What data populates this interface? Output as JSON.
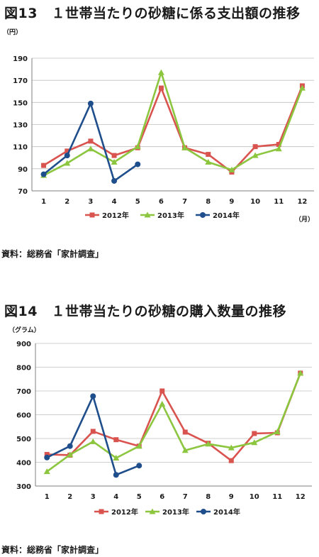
{
  "figure1": {
    "title": "図13　１世帯当たりの砂糖に係る支出額の推移",
    "source": "資料：総務省「家計調査」"
  },
  "figure2": {
    "title": "図14　１世帯当たりの砂糖の購入数量の推移",
    "source": "資料：総務省「家計調査」"
  },
  "chart_data": [
    {
      "type": "line",
      "title": "",
      "ylabel": "（円）",
      "xlabel": "（月）",
      "ylim": [
        70,
        190
      ],
      "yticks": [
        70,
        90,
        110,
        130,
        150,
        170,
        190
      ],
      "grid": true,
      "legend_position": "bottom",
      "categories": [
        "1",
        "2",
        "3",
        "4",
        "5",
        "6",
        "7",
        "8",
        "9",
        "10",
        "11",
        "12"
      ],
      "series": [
        {
          "name": "2012年",
          "color": "#d9534f",
          "marker": "square",
          "values": [
            93,
            106,
            115,
            102,
            109,
            163,
            109,
            103,
            87,
            110,
            112,
            165
          ]
        },
        {
          "name": "2013年",
          "color": "#8cc63f",
          "marker": "triangle",
          "values": [
            84,
            95,
            108,
            96,
            110,
            177,
            109,
            96,
            89,
            102,
            108,
            163
          ]
        },
        {
          "name": "2014年",
          "color": "#1f4e8c",
          "marker": "circle",
          "values": [
            85,
            102,
            149,
            79,
            94,
            null,
            null,
            null,
            null,
            null,
            null,
            null
          ]
        }
      ]
    },
    {
      "type": "line",
      "title": "",
      "ylabel": "（グラム）",
      "xlabel": "",
      "ylim": [
        300,
        900
      ],
      "yticks": [
        300,
        400,
        500,
        600,
        700,
        800,
        900
      ],
      "grid": true,
      "legend_position": "bottom",
      "categories": [
        "1",
        "2",
        "3",
        "4",
        "5",
        "6",
        "7",
        "8",
        "9",
        "10",
        "11",
        "12"
      ],
      "series": [
        {
          "name": "2012年",
          "color": "#d9534f",
          "marker": "square",
          "values": [
            433,
            430,
            530,
            495,
            468,
            700,
            527,
            480,
            407,
            521,
            524,
            775
          ]
        },
        {
          "name": "2013年",
          "color": "#8cc63f",
          "marker": "triangle",
          "values": [
            361,
            432,
            487,
            418,
            468,
            645,
            450,
            477,
            461,
            483,
            528,
            775
          ]
        },
        {
          "name": "2014年",
          "color": "#1f4e8c",
          "marker": "circle",
          "values": [
            420,
            468,
            678,
            347,
            386,
            null,
            null,
            null,
            null,
            null,
            null,
            null
          ]
        }
      ]
    }
  ]
}
